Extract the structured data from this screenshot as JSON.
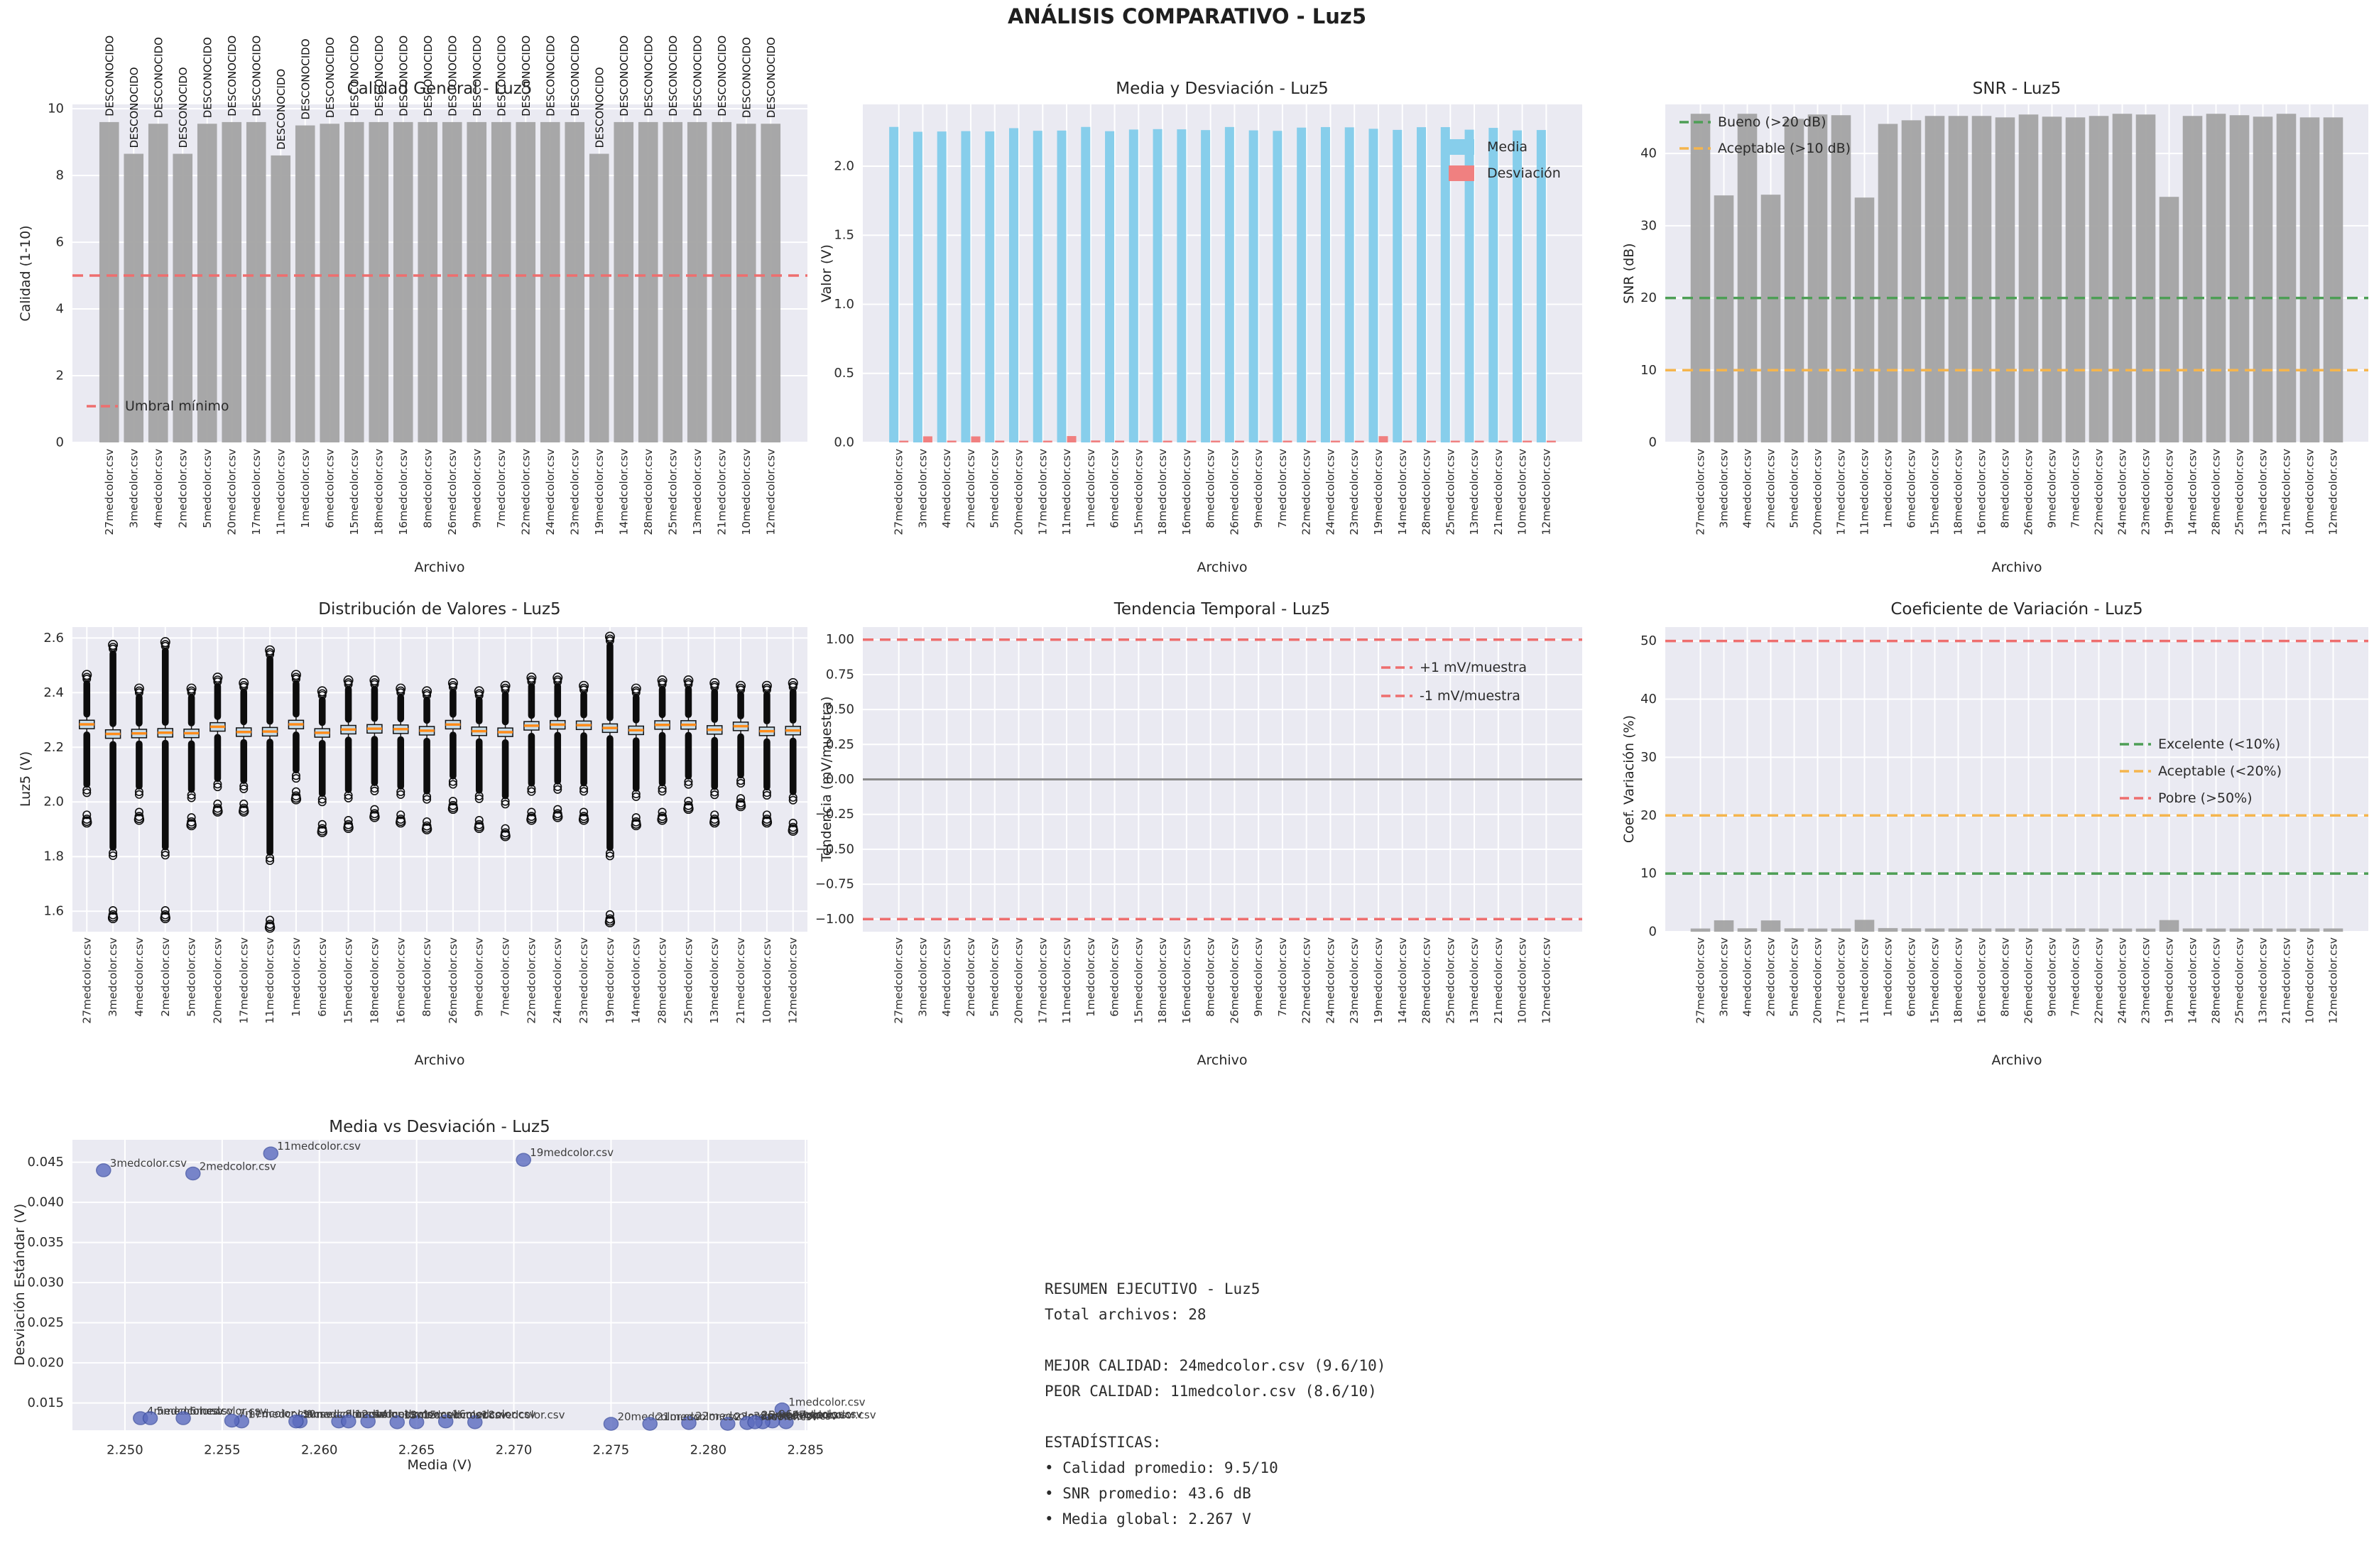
{
  "suptitle": "ANÁLISIS COMPARATIVO - Luz5",
  "colors": {
    "axes_bg": "#eaeaf2",
    "grid": "#ffffff",
    "bar_gray": "#a3a3a3",
    "skyblue": "#87ceeb",
    "lightcoral": "#f08080",
    "red_dash": "#ee6e6e",
    "green_dash": "#4d9e55",
    "orange_dash": "#f5b54d",
    "zero_gray": "#8a8a8a",
    "box_fill": "#c6dbe8",
    "median_orange": "#ff8c1a",
    "outlier_black": "#0d0d0d",
    "scatter_fill": "#5b6bbf",
    "scatter_edge": "#3f51a3",
    "text": "#2b2b2b"
  },
  "files": [
    "27medcolor.csv",
    "3medcolor.csv",
    "4medcolor.csv",
    "2medcolor.csv",
    "5medcolor.csv",
    "20medcolor.csv",
    "17medcolor.csv",
    "11medcolor.csv",
    "1medcolor.csv",
    "6medcolor.csv",
    "15medcolor.csv",
    "18medcolor.csv",
    "16medcolor.csv",
    "8medcolor.csv",
    "26medcolor.csv",
    "9medcolor.csv",
    "7medcolor.csv",
    "22medcolor.csv",
    "24medcolor.csv",
    "23medcolor.csv",
    "19medcolor.csv",
    "14medcolor.csv",
    "28medcolor.csv",
    "25medcolor.csv",
    "13medcolor.csv",
    "21medcolor.csv",
    "10medcolor.csv",
    "12medcolor.csv"
  ],
  "chart_data": [
    {
      "type": "bar",
      "title": "Calidad General - Luz5",
      "xlabel": "Archivo",
      "ylabel": "Calidad (1-10)",
      "ylim": [
        0,
        10.13
      ],
      "yticks": [
        0,
        2,
        4,
        6,
        8,
        10
      ],
      "ytick_labels": [
        "0",
        "2",
        "4",
        "6",
        "8",
        "10"
      ],
      "bar_color": "bar_gray",
      "bar_label": "DESCONOCIDO",
      "values": [
        9.6,
        8.65,
        9.55,
        8.65,
        9.55,
        9.6,
        9.6,
        8.6,
        9.5,
        9.55,
        9.6,
        9.6,
        9.6,
        9.6,
        9.6,
        9.6,
        9.6,
        9.6,
        9.6,
        9.6,
        8.65,
        9.6,
        9.6,
        9.6,
        9.6,
        9.6,
        9.55,
        9.55
      ],
      "hlines": [
        {
          "y": 5,
          "color": "red_dash",
          "label": "Umbral mínimo"
        }
      ],
      "legend": [
        {
          "type": "dash",
          "color": "red_dash",
          "label": "Umbral mínimo"
        }
      ]
    },
    {
      "type": "bar-group",
      "title": "Media y Desviación - Luz5",
      "xlabel": "Archivo",
      "ylabel": "Valor (V)",
      "ylim": [
        0,
        2.447
      ],
      "yticks": [
        0.0,
        0.5,
        1.0,
        1.5,
        2.0
      ],
      "ytick_labels": [
        "0.0",
        "0.5",
        "1.0",
        "1.5",
        "2.0"
      ],
      "series": [
        {
          "name": "Media",
          "color": "skyblue",
          "values": [
            2.284,
            2.2489,
            2.2508,
            2.2535,
            2.2513,
            2.275,
            2.256,
            2.2575,
            2.2838,
            2.253,
            2.265,
            2.268,
            2.2665,
            2.261,
            2.2833,
            2.259,
            2.2555,
            2.279,
            2.2828,
            2.281,
            2.2705,
            2.2625,
            2.282,
            2.2824,
            2.264,
            2.277,
            2.2588,
            2.2615
          ]
        },
        {
          "name": "Desviación",
          "color": "lightcoral",
          "values": [
            0.0126,
            0.044,
            0.0131,
            0.0436,
            0.0131,
            0.0124,
            0.0127,
            0.0461,
            0.0142,
            0.0131,
            0.0126,
            0.0126,
            0.0127,
            0.0127,
            0.0127,
            0.0127,
            0.0128,
            0.0125,
            0.0126,
            0.0124,
            0.0453,
            0.0127,
            0.0125,
            0.0126,
            0.0126,
            0.0124,
            0.0127,
            0.0127
          ]
        }
      ],
      "legend": [
        {
          "type": "patch",
          "color": "skyblue",
          "label": "Media"
        },
        {
          "type": "patch",
          "color": "lightcoral",
          "label": "Desviación"
        }
      ]
    },
    {
      "type": "bar",
      "title": "SNR - Luz5",
      "xlabel": "Archivo",
      "ylabel": "SNR (dB)",
      "ylim": [
        0,
        46.8
      ],
      "yticks": [
        0,
        10,
        20,
        30,
        40
      ],
      "ytick_labels": [
        "0",
        "10",
        "20",
        "30",
        "40"
      ],
      "bar_color": "bar_gray",
      "values": [
        45.5,
        34.2,
        45.5,
        34.3,
        44.8,
        45.4,
        45.3,
        33.9,
        44.1,
        44.6,
        45.2,
        45.2,
        45.2,
        45.0,
        45.4,
        45.1,
        45.0,
        45.2,
        45.5,
        45.4,
        34.0,
        45.2,
        45.5,
        45.3,
        45.1,
        45.5,
        45.0,
        45.0
      ],
      "hlines": [
        {
          "y": 20,
          "color": "green_dash",
          "label": "Bueno (>20 dB)"
        },
        {
          "y": 10,
          "color": "orange_dash",
          "label": "Aceptable (>10 dB)"
        }
      ],
      "legend": [
        {
          "type": "dash",
          "color": "green_dash",
          "label": "Bueno (>20 dB)"
        },
        {
          "type": "dash",
          "color": "orange_dash",
          "label": "Aceptable (>10 dB)"
        }
      ]
    },
    {
      "type": "box",
      "title": "Distribución de Valores - Luz5",
      "xlabel": "Archivo",
      "ylabel": "Luz5 (V)",
      "ylim": [
        1.525,
        2.64
      ],
      "yticks": [
        1.6,
        1.8,
        2.0,
        2.2,
        2.4,
        2.6
      ],
      "ytick_labels": [
        "1.6",
        "1.8",
        "2.0",
        "2.2",
        "2.4",
        "2.6"
      ],
      "stats": {
        "median": [
          2.284,
          2.2489,
          2.2508,
          2.2535,
          2.2513,
          2.275,
          2.256,
          2.2575,
          2.2838,
          2.253,
          2.265,
          2.268,
          2.2665,
          2.261,
          2.2833,
          2.259,
          2.2555,
          2.279,
          2.2828,
          2.281,
          2.2705,
          2.2625,
          2.282,
          2.2824,
          2.264,
          2.277,
          2.2588,
          2.2615
        ],
        "q1": [
          2.268,
          2.2329,
          2.2348,
          2.2375,
          2.2353,
          2.259,
          2.24,
          2.2415,
          2.2678,
          2.237,
          2.249,
          2.252,
          2.2505,
          2.245,
          2.2673,
          2.243,
          2.2395,
          2.263,
          2.2668,
          2.265,
          2.2545,
          2.2465,
          2.266,
          2.2664,
          2.248,
          2.261,
          2.2428,
          2.2455
        ],
        "q3": [
          2.299,
          2.2639,
          2.2658,
          2.2685,
          2.2663,
          2.29,
          2.271,
          2.2725,
          2.2988,
          2.268,
          2.28,
          2.283,
          2.2815,
          2.276,
          2.2983,
          2.274,
          2.2705,
          2.294,
          2.2978,
          2.296,
          2.2855,
          2.2775,
          2.297,
          2.2974,
          2.279,
          2.292,
          2.2738,
          2.2765
        ],
        "min": [
          1.925,
          1.575,
          1.935,
          1.575,
          1.915,
          1.965,
          1.965,
          1.54,
          2.01,
          1.89,
          1.905,
          1.945,
          1.925,
          1.9,
          1.975,
          1.905,
          1.875,
          1.935,
          1.945,
          1.935,
          1.56,
          1.915,
          1.935,
          1.975,
          1.925,
          1.985,
          1.925,
          1.895
        ],
        "max": [
          2.465,
          2.575,
          2.415,
          2.585,
          2.415,
          2.455,
          2.435,
          2.555,
          2.465,
          2.405,
          2.445,
          2.445,
          2.415,
          2.405,
          2.435,
          2.405,
          2.425,
          2.455,
          2.455,
          2.425,
          2.605,
          2.415,
          2.445,
          2.445,
          2.435,
          2.425,
          2.425,
          2.435
        ]
      }
    },
    {
      "type": "line",
      "title": "Tendencia Temporal - Luz5",
      "xlabel": "Archivo",
      "ylabel": "Tendencia (mV/muestra)",
      "ylim": [
        -1.09,
        1.09
      ],
      "yticks": [
        -1.0,
        -0.75,
        -0.5,
        -0.25,
        0.0,
        0.25,
        0.5,
        0.75,
        1.0
      ],
      "ytick_labels": [
        "−1.00",
        "−0.75",
        "−0.50",
        "−0.25",
        "0.00",
        "0.25",
        "0.50",
        "0.75",
        "1.00"
      ],
      "values": [
        0,
        0,
        0,
        0,
        0,
        0,
        0,
        0,
        0,
        0,
        0,
        0,
        0,
        0,
        0,
        0,
        0,
        0,
        0,
        0,
        0,
        0,
        0,
        0,
        0,
        0,
        0,
        0
      ],
      "zero_line": 0,
      "hlines": [
        {
          "y": 1,
          "color": "red_dash",
          "label": "+1 mV/muestra"
        },
        {
          "y": -1,
          "color": "red_dash",
          "label": "-1 mV/muestra"
        }
      ],
      "legend": [
        {
          "type": "dash",
          "color": "red_dash",
          "label": "+1 mV/muestra"
        },
        {
          "type": "dash",
          "color": "red_dash",
          "label": "-1 mV/muestra"
        }
      ]
    },
    {
      "type": "bar",
      "title": "Coeficiente de Variación - Luz5",
      "xlabel": "Archivo",
      "ylabel": "Coef. Variación (%)",
      "ylim": [
        0,
        52.4
      ],
      "yticks": [
        0,
        10,
        20,
        30,
        40,
        50
      ],
      "ytick_labels": [
        "0",
        "10",
        "20",
        "30",
        "40",
        "50"
      ],
      "bar_color": "bar_gray",
      "values": [
        0.55,
        1.96,
        0.58,
        1.94,
        0.58,
        0.55,
        0.56,
        2.04,
        0.62,
        0.58,
        0.56,
        0.56,
        0.56,
        0.56,
        0.56,
        0.56,
        0.57,
        0.55,
        0.55,
        0.54,
        2.0,
        0.56,
        0.55,
        0.55,
        0.56,
        0.54,
        0.56,
        0.56
      ],
      "hlines": [
        {
          "y": 10,
          "color": "green_dash",
          "label": "Excelente (<10%)"
        },
        {
          "y": 20,
          "color": "orange_dash",
          "label": "Aceptable (<20%)"
        },
        {
          "y": 50,
          "color": "red_dash",
          "label": "Pobre (>50%)"
        }
      ],
      "legend": [
        {
          "type": "dash",
          "color": "green_dash",
          "label": "Excelente (<10%)"
        },
        {
          "type": "dash",
          "color": "orange_dash",
          "label": "Aceptable (<20%)"
        },
        {
          "type": "dash",
          "color": "red_dash",
          "label": "Pobre (>50%)"
        }
      ]
    },
    {
      "type": "scatter",
      "title": "Media vs Desviación - Luz5",
      "xlabel": "Media (V)",
      "ylabel": "Desviación Estándar (V)",
      "xlim": [
        2.2473,
        2.2851
      ],
      "ylim": [
        0.0116,
        0.0478
      ],
      "xticks": [
        2.25,
        2.255,
        2.26,
        2.265,
        2.27,
        2.275,
        2.28,
        2.285
      ],
      "xtick_labels": [
        "2.250",
        "2.255",
        "2.260",
        "2.265",
        "2.270",
        "2.275",
        "2.280",
        "2.285"
      ],
      "yticks": [
        0.015,
        0.02,
        0.025,
        0.03,
        0.035,
        0.04,
        0.045
      ],
      "ytick_labels": [
        "0.015",
        "0.020",
        "0.025",
        "0.030",
        "0.035",
        "0.040",
        "0.045"
      ],
      "x": [
        2.284,
        2.2489,
        2.2508,
        2.2535,
        2.2513,
        2.275,
        2.256,
        2.2575,
        2.2838,
        2.253,
        2.265,
        2.268,
        2.2665,
        2.261,
        2.2833,
        2.259,
        2.2555,
        2.279,
        2.2828,
        2.281,
        2.2705,
        2.2625,
        2.282,
        2.2824,
        2.264,
        2.277,
        2.2588,
        2.2615
      ],
      "y": [
        0.0126,
        0.044,
        0.0131,
        0.0436,
        0.0131,
        0.0124,
        0.0127,
        0.0461,
        0.0142,
        0.0131,
        0.0126,
        0.0126,
        0.0127,
        0.0127,
        0.0127,
        0.0127,
        0.0128,
        0.0125,
        0.0126,
        0.0124,
        0.0453,
        0.0127,
        0.0125,
        0.0126,
        0.0126,
        0.0124,
        0.0127,
        0.0127
      ]
    }
  ],
  "resumen": {
    "lines": [
      "RESUMEN EJECUTIVO - Luz5",
      "Total archivos: 28",
      "",
      "MEJOR CALIDAD: 24medcolor.csv (9.6/10)",
      "PEOR CALIDAD: 11medcolor.csv (8.6/10)",
      "",
      "ESTADÍSTICAS:",
      "• Calidad promedio: 9.5/10",
      "• SNR promedio: 43.6 dB",
      "• Media global: 2.267 V"
    ]
  }
}
